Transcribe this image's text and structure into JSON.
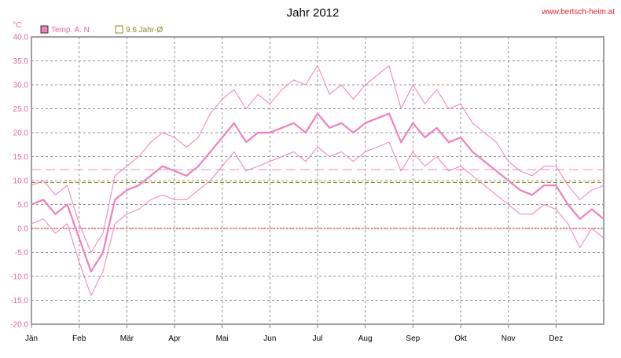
{
  "chart_data": {
    "type": "line",
    "title": "Jahr 2012",
    "source": "www.bertsch-heim.at",
    "yunit": "°C",
    "ylim": [
      -20,
      40
    ],
    "yticks": [
      "40.0",
      "35.0",
      "30.0",
      "25.0",
      "20.0",
      "15.0",
      "10.0",
      "5.0",
      "0.0",
      "-5.0",
      "-10.0",
      "-15.0",
      "-20.0"
    ],
    "months": [
      "Jän",
      "Feb",
      "Mär",
      "Apr",
      "Mai",
      "Jun",
      "Jul",
      "Aug",
      "Sep",
      "Okt",
      "Nov",
      "Dez"
    ],
    "grid": true,
    "legend_position": "top-left",
    "reference_lines": [
      {
        "value": 12.3,
        "style": "dashed",
        "color": "#f0a0c8"
      },
      {
        "value": 9.6,
        "style": "dashed",
        "color": "#8a8a1a"
      },
      {
        "value": 0.0,
        "style": "dotted",
        "color": "#e03030"
      }
    ],
    "series": [
      {
        "name": "Temp. A. N",
        "color": "#ef7fbf",
        "x_month_index": [
          0,
          0.25,
          0.5,
          0.75,
          1,
          1.25,
          1.5,
          1.75,
          2,
          2.25,
          2.5,
          2.75,
          3,
          3.25,
          3.5,
          3.75,
          4,
          4.25,
          4.5,
          4.75,
          5,
          5.25,
          5.5,
          5.75,
          6,
          6.25,
          6.5,
          6.75,
          7,
          7.25,
          7.5,
          7.75,
          8,
          8.25,
          8.5,
          8.75,
          9,
          9.25,
          9.5,
          9.75,
          10,
          10.25,
          10.5,
          10.75,
          11,
          11.25,
          11.5,
          11.75,
          12
        ],
        "mean": [
          5,
          6,
          3,
          5,
          -2,
          -9,
          -5,
          6,
          8,
          9,
          11,
          13,
          12,
          11,
          13,
          16,
          19,
          22,
          18,
          20,
          20,
          21,
          22,
          20,
          24,
          21,
          22,
          20,
          22,
          23,
          24,
          18,
          22,
          19,
          21,
          18,
          19,
          16,
          14,
          12,
          10,
          8,
          7,
          9,
          9,
          5,
          2,
          4,
          2
        ],
        "max": [
          9,
          10,
          7,
          9,
          1,
          -5,
          -1,
          11,
          13,
          15,
          18,
          20,
          19,
          17,
          19,
          24,
          27,
          29,
          25,
          28,
          26,
          29,
          31,
          30,
          34,
          28,
          30,
          27,
          30,
          32,
          34,
          25,
          30,
          26,
          29,
          25,
          26,
          22,
          20,
          18,
          14,
          12,
          11,
          13,
          13,
          9,
          6,
          8,
          9
        ],
        "min": [
          1,
          2,
          -1,
          1,
          -7,
          -14,
          -9,
          1,
          3,
          4,
          6,
          7,
          6,
          6,
          8,
          10,
          13,
          16,
          12,
          13,
          14,
          15,
          16,
          14,
          17,
          15,
          16,
          14,
          16,
          17,
          18,
          12,
          16,
          13,
          15,
          12,
          13,
          11,
          9,
          7,
          5,
          3,
          3,
          5,
          4,
          1,
          -4,
          0,
          -2
        ]
      },
      {
        "name": "9.6 Jahr-Ø",
        "color": "#8a8a1a",
        "value": 9.6
      }
    ]
  }
}
